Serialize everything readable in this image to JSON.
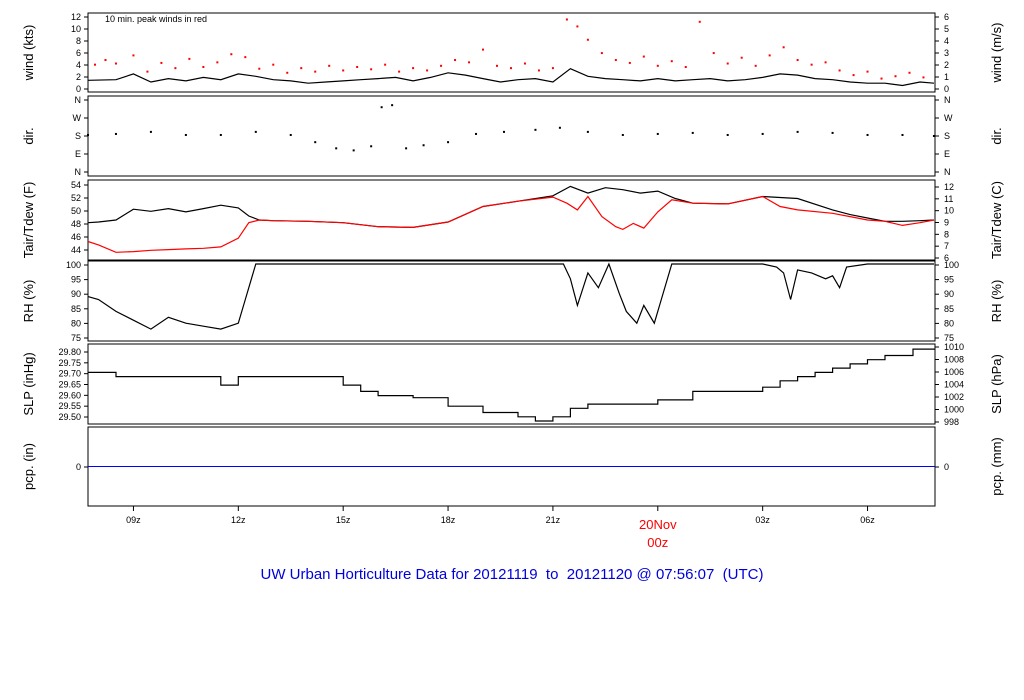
{
  "caption": "UW Urban Horticulture Data for 20121119  to  20121120 @ 07:56:07  (UTC)",
  "x_axis": {
    "start_hour": 7.7,
    "end_hour": 31.93,
    "ticks": [
      {
        "hour": 9,
        "label": "09z"
      },
      {
        "hour": 12,
        "label": "12z"
      },
      {
        "hour": 15,
        "label": "15z"
      },
      {
        "hour": 18,
        "label": "18z"
      },
      {
        "hour": 21,
        "label": "21z"
      },
      {
        "hour": 24,
        "label": ""
      },
      {
        "hour": 27,
        "label": "03z"
      },
      {
        "hour": 30,
        "label": "06z"
      }
    ],
    "date_marker": {
      "hour": 24,
      "line1": "20Nov",
      "line2": "00z",
      "color": "#ff0000"
    }
  },
  "colors": {
    "main": "#000000",
    "peak": "#ff0000",
    "dew": "#ff0000",
    "precip": "#0000ff",
    "caption": "#0000dd"
  },
  "panels": {
    "wind": {
      "left_label": "wind (kts)",
      "right_label": "wind (m/s)",
      "note": "10 min. peak winds in red",
      "left_ticks": [
        "0",
        "2",
        "4",
        "6",
        "8",
        "10",
        "12"
      ],
      "right_ticks": [
        "0",
        "1",
        "2",
        "3",
        "4",
        "5",
        "6"
      ]
    },
    "dir": {
      "left_label": "dir.",
      "right_label": "dir.",
      "left_ticks": [
        "N",
        "E",
        "S",
        "W",
        "N"
      ],
      "right_ticks": [
        "N",
        "E",
        "S",
        "W",
        "N"
      ]
    },
    "temp": {
      "left_label": "Tair/Tdew (F)",
      "right_label": "Tair/Tdew (C)",
      "left_ticks": [
        "44",
        "46",
        "48",
        "50",
        "52",
        "54"
      ],
      "right_ticks": [
        "6",
        "7",
        "8",
        "9",
        "10",
        "11",
        "12"
      ]
    },
    "rh": {
      "left_label": "RH (%)",
      "right_label": "RH (%)",
      "left_ticks": [
        "75",
        "80",
        "85",
        "90",
        "95",
        "100"
      ],
      "right_ticks": [
        "75",
        "80",
        "85",
        "90",
        "95",
        "100"
      ]
    },
    "slp": {
      "left_label": "SLP (inHg)",
      "right_label": "SLP (hPa)",
      "left_ticks": [
        "29.50",
        "29.55",
        "29.60",
        "29.65",
        "29.70",
        "29.75",
        "29.80"
      ],
      "right_ticks": [
        "998",
        "1000",
        "1002",
        "1004",
        "1006",
        "1008",
        "1010"
      ]
    },
    "pcp": {
      "left_label": "pcp. (in)",
      "right_label": "pcp. (mm)",
      "left_ticks": [
        "0"
      ],
      "right_ticks": [
        "0"
      ]
    }
  },
  "chart_data": [
    {
      "type": "line",
      "title": "wind",
      "xlabel": "",
      "ylabel": "wind (kts)",
      "ylim": [
        0,
        12.6
      ],
      "series": [
        {
          "x": [
            7.7,
            8.5,
            9.0,
            9.5,
            10.0,
            10.5,
            11.0,
            11.5,
            12.0,
            12.5,
            13.0,
            13.5,
            14.0,
            14.5,
            15.0,
            15.5,
            16.0,
            16.5,
            17.0,
            17.5,
            18.0,
            18.5,
            19.0,
            19.5,
            20.0,
            20.5,
            21.0,
            21.5,
            22.0,
            22.5,
            23.0,
            23.5,
            24.0,
            24.5,
            25.0,
            25.5,
            26.0,
            26.5,
            27.0,
            27.5,
            28.0,
            28.5,
            29.0,
            29.5,
            30.0,
            30.5,
            31.0,
            31.5,
            31.9
          ],
          "y": [
            1.5,
            1.6,
            2.6,
            1.2,
            1.8,
            1.4,
            2.0,
            1.6,
            2.6,
            2.2,
            1.6,
            1.4,
            1.0,
            1.2,
            1.4,
            1.6,
            1.8,
            2.0,
            1.4,
            2.0,
            2.8,
            2.4,
            1.8,
            1.2,
            1.6,
            1.8,
            1.2,
            3.5,
            2.2,
            1.8,
            1.6,
            1.4,
            1.8,
            1.4,
            1.6,
            1.8,
            1.4,
            1.6,
            2.0,
            2.6,
            2.4,
            1.8,
            1.6,
            1.2,
            1.0,
            1.0,
            0.6,
            1.2,
            1.0
          ]
        },
        {
          "x": [
            7.9,
            8.2,
            8.5,
            9.0,
            9.4,
            9.8,
            10.2,
            10.6,
            11.0,
            11.4,
            11.8,
            12.2,
            12.6,
            13.0,
            13.4,
            13.8,
            14.2,
            14.6,
            15.0,
            15.4,
            15.8,
            16.2,
            16.6,
            17.0,
            17.4,
            17.8,
            18.2,
            18.6,
            19.0,
            19.4,
            19.8,
            20.2,
            20.6,
            21.0,
            21.4,
            21.7,
            22.0,
            22.4,
            22.8,
            23.2,
            23.6,
            24.0,
            24.4,
            24.8,
            25.2,
            25.6,
            26.0,
            26.4,
            26.8,
            27.2,
            27.6,
            28.0,
            28.4,
            28.8,
            29.2,
            29.6,
            30.0,
            30.4,
            30.8,
            31.2,
            31.6
          ],
          "y": [
            4.2,
            5.0,
            4.4,
            5.8,
            3.0,
            4.5,
            3.6,
            5.2,
            3.8,
            4.6,
            6.0,
            5.5,
            3.5,
            4.2,
            2.8,
            3.6,
            3.0,
            4.0,
            3.2,
            3.8,
            3.4,
            4.2,
            3.0,
            3.6,
            3.2,
            4.0,
            5.0,
            4.6,
            6.8,
            4.0,
            3.6,
            4.4,
            3.2,
            3.6,
            12.0,
            10.8,
            8.5,
            6.2,
            5.0,
            4.5,
            5.6,
            4.0,
            4.8,
            3.8,
            11.6,
            6.2,
            4.4,
            5.4,
            4.0,
            5.8,
            7.2,
            5.0,
            4.2,
            4.6,
            3.2,
            2.4,
            3.0,
            1.8,
            2.2,
            2.8,
            2.0
          ]
        }
      ]
    },
    {
      "type": "scatter",
      "title": "dir.",
      "xlabel": "",
      "ylabel": "dir.",
      "ylim": [
        0,
        360
      ],
      "series": [
        {
          "x": [
            7.7,
            8.5,
            9.5,
            10.5,
            11.5,
            12.5,
            13.5,
            14.2,
            14.8,
            15.3,
            15.8,
            16.1,
            16.4,
            16.8,
            17.3,
            18.0,
            18.8,
            19.6,
            20.5,
            21.2,
            22.0,
            23.0,
            24.0,
            25.0,
            26.0,
            27.0,
            28.0,
            29.0,
            30.0,
            31.0,
            31.9
          ],
          "y": [
            185,
            190,
            200,
            185,
            185,
            200,
            185,
            150,
            120,
            110,
            130,
            320,
            330,
            120,
            135,
            150,
            190,
            200,
            210,
            220,
            200,
            185,
            190,
            195,
            185,
            190,
            200,
            195,
            185,
            185,
            180
          ]
        }
      ]
    },
    {
      "type": "line",
      "title": "Tair/Tdew",
      "xlabel": "",
      "ylabel": "Tair/Tdew (F)",
      "ylim": [
        43.5,
        54.5
      ],
      "series": [
        {
          "x": [
            7.7,
            8.0,
            8.5,
            9.0,
            9.5,
            10.0,
            10.5,
            11.0,
            11.5,
            12.0,
            12.3,
            12.6,
            13.0,
            14.0,
            15.0,
            16.0,
            17.0,
            18.0,
            19.0,
            20.0,
            21.0,
            21.5,
            22.0,
            22.5,
            23.0,
            23.5,
            24.0,
            24.5,
            25.0,
            26.0,
            27.0,
            28.0,
            29.0,
            29.5,
            30.0,
            30.5,
            31.0,
            31.5,
            31.9
          ],
          "y": [
            48.6,
            48.7,
            49.0,
            50.6,
            50.3,
            50.7,
            50.2,
            50.7,
            51.2,
            50.8,
            49.6,
            49.0,
            48.9,
            48.8,
            48.6,
            48.0,
            47.9,
            48.7,
            51.0,
            51.8,
            52.6,
            54.0,
            53.0,
            53.8,
            53.5,
            53.0,
            53.3,
            52.2,
            51.5,
            51.4,
            52.5,
            52.2,
            50.5,
            49.8,
            49.3,
            48.8,
            48.8,
            48.9,
            49.0
          ]
        },
        {
          "x": [
            7.7,
            8.0,
            8.5,
            9.0,
            9.5,
            10.0,
            10.5,
            11.0,
            11.5,
            12.0,
            12.3,
            12.6,
            13.0,
            14.0,
            15.0,
            16.0,
            17.0,
            18.0,
            19.0,
            20.0,
            21.0,
            21.4,
            21.7,
            22.0,
            22.4,
            22.8,
            23.0,
            23.3,
            23.6,
            24.0,
            24.4,
            25.0,
            26.0,
            27.0,
            27.5,
            28.0,
            29.0,
            29.5,
            30.0,
            30.5,
            31.0,
            31.5,
            31.9
          ],
          "y": [
            45.8,
            45.3,
            44.2,
            44.3,
            44.5,
            44.6,
            44.7,
            44.8,
            45.0,
            46.3,
            48.6,
            49.0,
            48.9,
            48.8,
            48.6,
            48.0,
            47.9,
            48.7,
            51.0,
            51.8,
            52.4,
            51.5,
            50.5,
            52.5,
            49.5,
            48.0,
            47.6,
            48.5,
            47.8,
            50.2,
            52.0,
            51.5,
            51.4,
            52.5,
            51.0,
            50.5,
            50.0,
            49.5,
            49.0,
            48.8,
            48.2,
            48.6,
            49.0
          ]
        }
      ]
    },
    {
      "type": "line",
      "title": "RH",
      "xlabel": "",
      "ylabel": "RH (%)",
      "ylim": [
        75,
        100
      ],
      "series": [
        {
          "x": [
            7.7,
            8.0,
            8.5,
            9.0,
            9.5,
            10.0,
            10.5,
            11.0,
            11.5,
            12.0,
            12.2,
            12.4,
            12.5,
            13.0,
            14.0,
            15.0,
            16.0,
            17.0,
            18.0,
            19.0,
            20.0,
            20.5,
            21.0,
            21.3,
            21.5,
            21.7,
            22.0,
            22.3,
            22.6,
            22.9,
            23.1,
            23.4,
            23.6,
            23.9,
            24.1,
            24.4,
            24.6,
            25.0,
            26.0,
            27.0,
            27.4,
            27.6,
            27.8,
            28.0,
            28.4,
            28.8,
            29.0,
            29.2,
            29.4,
            30.0,
            31.0,
            31.9
          ],
          "y": [
            89,
            88,
            84,
            81,
            78,
            82,
            80,
            79,
            78,
            80,
            88,
            96,
            100,
            100,
            100,
            100,
            100,
            100,
            100,
            100,
            100,
            100,
            100,
            100,
            95,
            86,
            97,
            92,
            100,
            90,
            84,
            80,
            86,
            80,
            88,
            100,
            100,
            100,
            100,
            100,
            99,
            97,
            88,
            98,
            97,
            95,
            96,
            92,
            99,
            100,
            100,
            100
          ]
        }
      ]
    },
    {
      "type": "line",
      "title": "SLP",
      "xlabel": "",
      "ylabel": "SLP (inHg)",
      "ylim": [
        29.48,
        29.83
      ],
      "series": [
        {
          "x": [
            7.7,
            8.5,
            9.5,
            10.5,
            11.5,
            12.0,
            13.0,
            14.0,
            15.0,
            15.5,
            16.0,
            17.0,
            18.0,
            19.0,
            20.0,
            20.5,
            21.0,
            21.5,
            22.0,
            23.0,
            24.0,
            25.0,
            26.0,
            27.0,
            27.5,
            28.0,
            28.5,
            29.0,
            29.5,
            30.0,
            30.5,
            31.0,
            31.3,
            31.9
          ],
          "y": [
            29.71,
            29.69,
            29.69,
            29.69,
            29.65,
            29.69,
            29.69,
            29.69,
            29.65,
            29.62,
            29.6,
            29.59,
            29.55,
            29.52,
            29.5,
            29.48,
            29.5,
            29.54,
            29.56,
            29.56,
            29.58,
            29.62,
            29.62,
            29.64,
            29.67,
            29.69,
            29.71,
            29.73,
            29.75,
            29.77,
            29.79,
            29.79,
            29.82,
            29.82
          ]
        }
      ]
    },
    {
      "type": "line",
      "title": "pcp",
      "xlabel": "",
      "ylabel": "pcp. (in)",
      "ylim": [
        -0.1,
        0.1
      ],
      "series": [
        {
          "x": [
            7.7,
            31.93
          ],
          "y": [
            0,
            0
          ]
        }
      ]
    }
  ]
}
